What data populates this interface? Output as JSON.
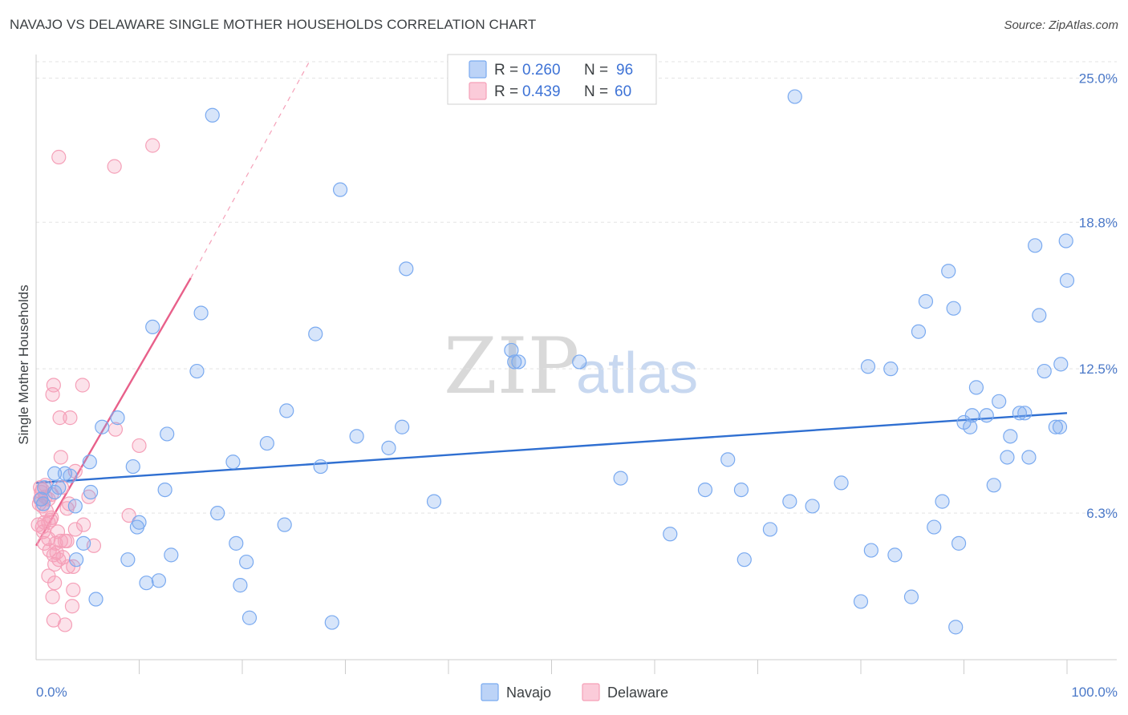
{
  "title": "NAVAJO VS DELAWARE SINGLE MOTHER HOUSEHOLDS CORRELATION CHART",
  "source": "Source: ZipAtlas.com",
  "watermark": {
    "part1": "ZIP",
    "part2": "atlas"
  },
  "chart_data": {
    "type": "scatter",
    "xlabel": "",
    "ylabel": "Single Mother Households",
    "xlim": [
      0,
      100
    ],
    "ylim": [
      0,
      25.7
    ],
    "x_tick_labels": {
      "left": "0.0%",
      "right": "100.0%"
    },
    "y_ticks": [
      {
        "value": 6.3,
        "label": "6.3%"
      },
      {
        "value": 12.5,
        "label": "12.5%"
      },
      {
        "value": 18.8,
        "label": "18.8%"
      },
      {
        "value": 25.0,
        "label": "25.0%"
      }
    ],
    "grid": true,
    "legend_position": "top-center",
    "series": [
      {
        "name": "Navajo",
        "color": "#7aaaf0",
        "line_color": "#2f6fd1",
        "r_label": "R = ",
        "r_value": "0.260",
        "n_label": "N = ",
        "n_value": "96",
        "trend": {
          "x0": 0,
          "y0": 7.6,
          "x1": 100,
          "y1": 10.6
        },
        "points": [
          [
            17.1,
            23.4
          ],
          [
            73.6,
            24.2
          ],
          [
            29.5,
            20.2
          ],
          [
            35.9,
            16.8
          ],
          [
            16.0,
            14.9
          ],
          [
            11.3,
            14.3
          ],
          [
            27.1,
            14.0
          ],
          [
            15.6,
            12.4
          ],
          [
            46.1,
            13.3
          ],
          [
            46.4,
            12.8
          ],
          [
            46.8,
            12.8
          ],
          [
            52.7,
            12.8
          ],
          [
            7.9,
            10.4
          ],
          [
            6.4,
            10.0
          ],
          [
            12.7,
            9.7
          ],
          [
            24.3,
            10.7
          ],
          [
            31.1,
            9.6
          ],
          [
            35.5,
            10.0
          ],
          [
            22.4,
            9.3
          ],
          [
            34.2,
            9.1
          ],
          [
            5.2,
            8.5
          ],
          [
            9.4,
            8.3
          ],
          [
            19.1,
            8.5
          ],
          [
            27.6,
            8.3
          ],
          [
            1.8,
            8.0
          ],
          [
            2.8,
            8.0
          ],
          [
            3.3,
            7.9
          ],
          [
            2.2,
            7.4
          ],
          [
            0.8,
            7.4
          ],
          [
            1.8,
            7.2
          ],
          [
            5.3,
            7.2
          ],
          [
            12.5,
            7.3
          ],
          [
            0.5,
            6.9
          ],
          [
            0.7,
            6.7
          ],
          [
            3.8,
            6.6
          ],
          [
            17.6,
            6.3
          ],
          [
            10.0,
            5.9
          ],
          [
            9.8,
            5.7
          ],
          [
            24.1,
            5.8
          ],
          [
            4.6,
            5.0
          ],
          [
            19.4,
            5.0
          ],
          [
            3.9,
            4.3
          ],
          [
            8.9,
            4.3
          ],
          [
            13.1,
            4.5
          ],
          [
            20.4,
            4.2
          ],
          [
            10.7,
            3.3
          ],
          [
            11.9,
            3.4
          ],
          [
            19.8,
            3.2
          ],
          [
            5.8,
            2.6
          ],
          [
            20.7,
            1.8
          ],
          [
            28.7,
            1.6
          ],
          [
            38.6,
            6.8
          ],
          [
            56.7,
            7.8
          ],
          [
            64.9,
            7.3
          ],
          [
            67.1,
            8.6
          ],
          [
            68.4,
            7.3
          ],
          [
            61.5,
            5.4
          ],
          [
            71.2,
            5.6
          ],
          [
            73.1,
            6.8
          ],
          [
            75.3,
            6.6
          ],
          [
            68.7,
            4.3
          ],
          [
            78.1,
            7.6
          ],
          [
            80.7,
            12.6
          ],
          [
            82.9,
            12.5
          ],
          [
            81.0,
            4.7
          ],
          [
            83.3,
            4.5
          ],
          [
            85.6,
            14.1
          ],
          [
            86.3,
            15.4
          ],
          [
            87.1,
            5.7
          ],
          [
            87.9,
            6.8
          ],
          [
            88.5,
            16.7
          ],
          [
            89.0,
            15.1
          ],
          [
            90.0,
            10.2
          ],
          [
            89.2,
            1.4
          ],
          [
            89.5,
            5.0
          ],
          [
            90.6,
            10.0
          ],
          [
            90.8,
            10.5
          ],
          [
            91.2,
            11.7
          ],
          [
            92.2,
            10.5
          ],
          [
            92.9,
            7.5
          ],
          [
            93.4,
            11.1
          ],
          [
            94.2,
            8.7
          ],
          [
            94.5,
            9.6
          ],
          [
            95.4,
            10.6
          ],
          [
            95.9,
            10.6
          ],
          [
            96.3,
            8.7
          ],
          [
            96.9,
            17.8
          ],
          [
            97.3,
            14.8
          ],
          [
            97.8,
            12.4
          ],
          [
            98.9,
            10.0
          ],
          [
            99.4,
            12.7
          ],
          [
            99.3,
            10.0
          ],
          [
            99.9,
            18.0
          ],
          [
            100.0,
            16.3
          ],
          [
            84.9,
            2.7
          ],
          [
            80.0,
            2.5
          ]
        ]
      },
      {
        "name": "Delaware",
        "color": "#f5a0b8",
        "line_color": "#e8608a",
        "r_label": "R = ",
        "r_value": "0.439",
        "n_label": "N = ",
        "n_value": "60",
        "trend": {
          "x0": 0,
          "y0": 4.9,
          "x1": 15.0,
          "y1": 16.4
        },
        "trend_ext": {
          "x0": 15.0,
          "y0": 16.4,
          "x1": 26.5,
          "y1": 25.7
        },
        "points": [
          [
            2.2,
            21.6
          ],
          [
            11.3,
            22.1
          ],
          [
            7.6,
            21.2
          ],
          [
            1.7,
            11.8
          ],
          [
            1.6,
            11.4
          ],
          [
            4.5,
            11.8
          ],
          [
            2.3,
            10.4
          ],
          [
            3.3,
            10.4
          ],
          [
            7.7,
            9.9
          ],
          [
            10.0,
            9.2
          ],
          [
            2.4,
            8.7
          ],
          [
            3.8,
            8.1
          ],
          [
            0.4,
            7.4
          ],
          [
            0.5,
            7.2
          ],
          [
            0.9,
            7.0
          ],
          [
            0.4,
            6.9
          ],
          [
            1.2,
            6.9
          ],
          [
            0.6,
            6.6
          ],
          [
            3.2,
            6.7
          ],
          [
            5.1,
            7.0
          ],
          [
            1.5,
            6.1
          ],
          [
            1.2,
            5.9
          ],
          [
            0.8,
            5.9
          ],
          [
            0.6,
            5.7
          ],
          [
            0.7,
            5.5
          ],
          [
            1.2,
            5.2
          ],
          [
            3.8,
            5.6
          ],
          [
            4.6,
            5.8
          ],
          [
            9.0,
            6.2
          ],
          [
            1.9,
            5.0
          ],
          [
            2.4,
            5.1
          ],
          [
            2.8,
            5.1
          ],
          [
            3.0,
            5.1
          ],
          [
            5.6,
            4.9
          ],
          [
            1.7,
            4.5
          ],
          [
            2.2,
            4.3
          ],
          [
            2.6,
            4.4
          ],
          [
            1.8,
            4.1
          ],
          [
            3.6,
            4.0
          ],
          [
            3.1,
            4.0
          ],
          [
            1.2,
            3.6
          ],
          [
            1.8,
            3.3
          ],
          [
            3.6,
            3.0
          ],
          [
            1.6,
            2.7
          ],
          [
            3.5,
            2.3
          ],
          [
            1.7,
            1.7
          ],
          [
            2.8,
            1.5
          ],
          [
            0.6,
            7.3
          ],
          [
            1.0,
            6.4
          ],
          [
            1.4,
            6.0
          ],
          [
            2.1,
            5.5
          ],
          [
            0.8,
            5.0
          ],
          [
            1.3,
            4.7
          ],
          [
            2.0,
            4.6
          ],
          [
            3.0,
            6.5
          ],
          [
            0.3,
            6.7
          ],
          [
            0.9,
            7.5
          ],
          [
            1.5,
            7.1
          ],
          [
            2.5,
            7.4
          ],
          [
            0.2,
            5.8
          ]
        ]
      }
    ]
  }
}
